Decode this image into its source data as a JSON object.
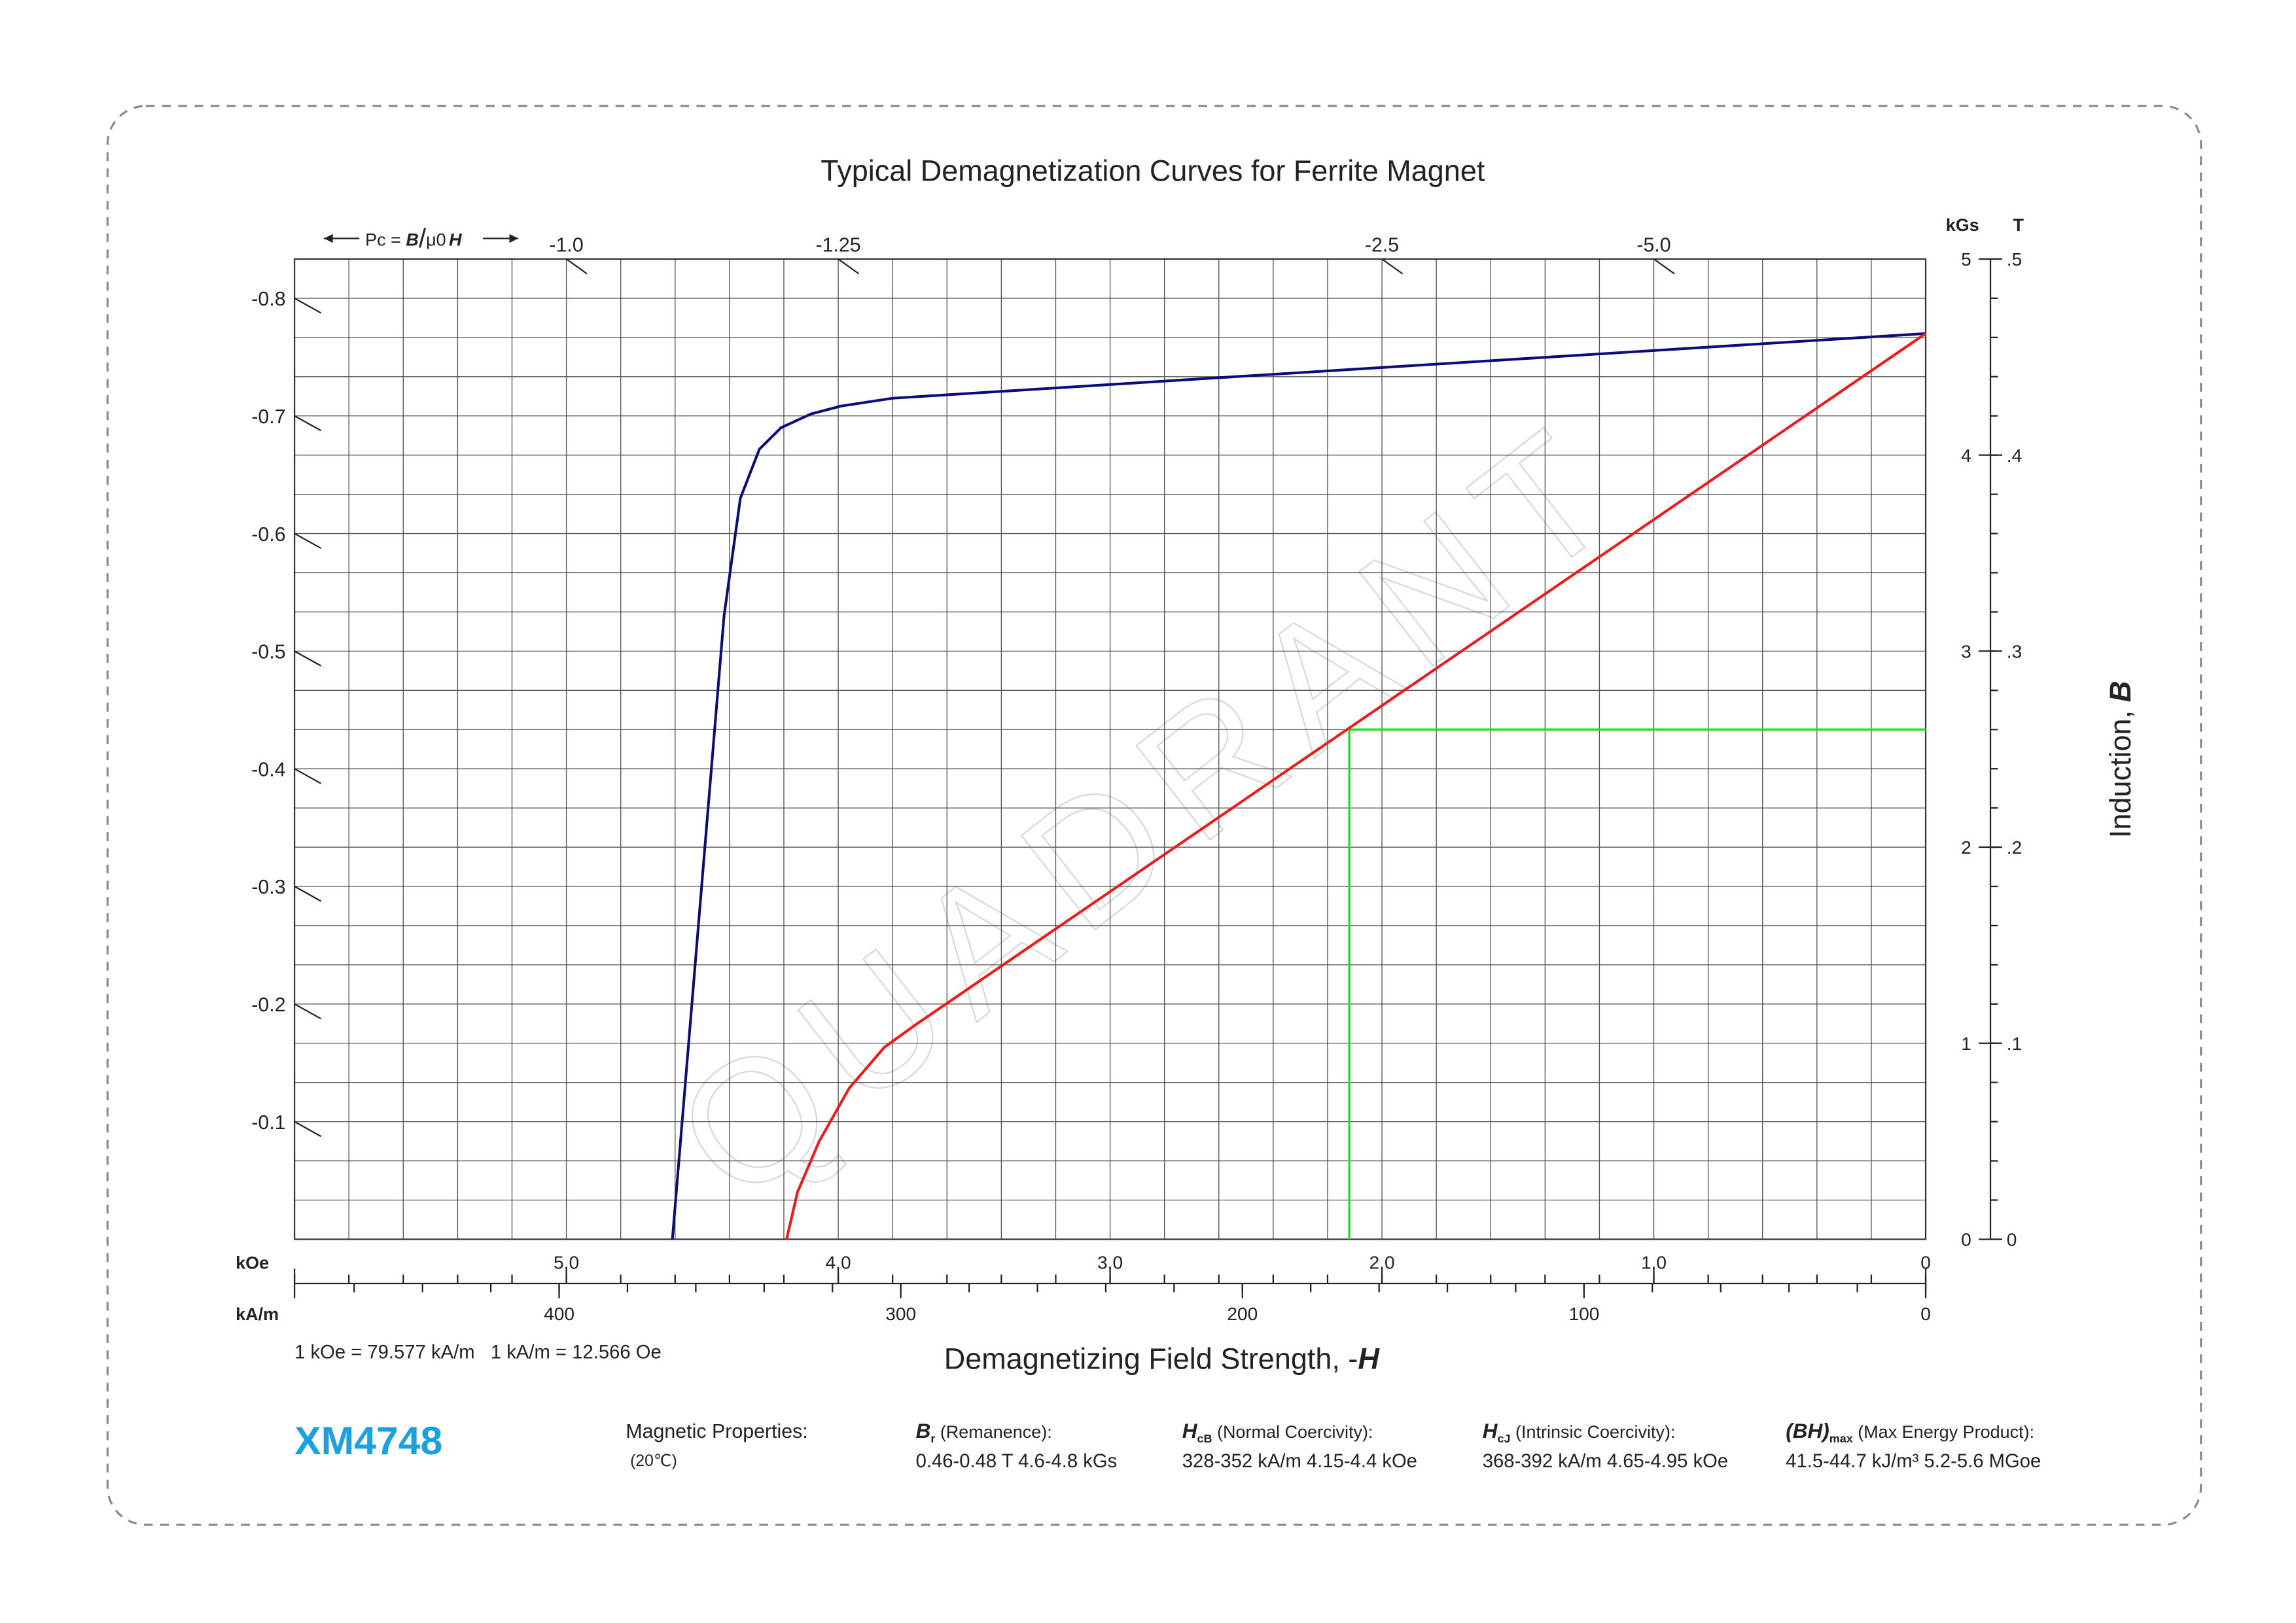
{
  "chart_data": {
    "type": "line",
    "title": "Typical Demagnetization Curves for Ferrite Magnet",
    "watermark": "QUADRANT",
    "pc_label": {
      "prefix": "Pc = ",
      "num": "B",
      "slash": "/",
      "den": "μ0",
      "var": "H"
    },
    "x_label": {
      "text": "Demagnetizing Field Strength, -",
      "var": "H"
    },
    "y_label": {
      "text": "Induction, ",
      "var": "B"
    },
    "x_unit": "kOe",
    "x2_unit": "kA/m",
    "y_unit": "kGs",
    "y2_unit": "T",
    "xlim": [
      6,
      0
    ],
    "xticks": [
      {
        "value": 5,
        "label": "5.0"
      },
      {
        "value": 4,
        "label": "4.0"
      },
      {
        "value": 3,
        "label": "3.0"
      },
      {
        "value": 2,
        "label": "2.0"
      },
      {
        "value": 1,
        "label": "1.0"
      },
      0
    ],
    "x2lim": [
      477.46,
      0
    ],
    "x2ticks": [
      400,
      300,
      200,
      100,
      0
    ],
    "x2_minor_step": 20,
    "ylim": [
      0,
      5
    ],
    "yticks": [
      0,
      1,
      2,
      3,
      4,
      5
    ],
    "y2lim": [
      0,
      0.5
    ],
    "y2ticks": [
      0,
      {
        "value": 0.1,
        "label": ".1"
      },
      {
        "value": 0.2,
        "label": ".2"
      },
      {
        "value": 0.3,
        "label": ".3"
      },
      {
        "value": 0.4,
        "label": ".4"
      },
      {
        "value": 0.5,
        "label": ".5"
      }
    ],
    "grid": {
      "x_step": 0.2,
      "y_step": 0.2
    },
    "pc_left": [
      -0.8,
      -0.7,
      -0.6,
      -0.5,
      -0.4,
      -0.3,
      -0.2,
      -0.1
    ],
    "pc_top": [
      {
        "value": -1,
        "label": "-1.0"
      },
      -1.25,
      -2.5,
      {
        "value": -5,
        "label": "-5.0"
      }
    ],
    "series": [
      {
        "color": "#0b0b7a",
        "x": [
          0,
          2.54,
          3.8,
          3.99,
          4.1,
          4.21,
          4.29,
          4.36,
          4.42,
          4.61
        ],
        "values": [
          4.62,
          4.4,
          4.29,
          4.25,
          4.21,
          4.14,
          4.03,
          3.78,
          3.18,
          0
        ]
      },
      {
        "color": "#f01818",
        "x": [
          0,
          3.72,
          3.83,
          3.96,
          4.07,
          4.15,
          4.19
        ],
        "values": [
          4.62,
          1.09,
          0.98,
          0.77,
          0.5,
          0.24,
          0
        ]
      }
    ],
    "markers": {
      "color": "#22e022",
      "x": 2.12,
      "y": 2.6
    },
    "conversion": "1 kOe = 79.577 kA/m   1 kA/m = 12.566 Oe",
    "grade": "XM4748",
    "properties": {
      "title": "Magnetic Properties:",
      "temperature": "(20℃)",
      "items": [
        {
          "symbol": "B",
          "sub": "r",
          "name": " (Remanence):",
          "value": "0.46-0.48 T   4.6-4.8 kGs"
        },
        {
          "symbol": "H",
          "sub": "cB",
          "name": " (Normal Coercivity):",
          "value": "328-352 kA/m   4.15-4.4 kOe"
        },
        {
          "symbol": "H",
          "sub": "cJ",
          "name": "  (Intrinsic Coercivity):",
          "value": "368-392 kA/m   4.65-4.95 kOe"
        },
        {
          "symbol": "(BH)",
          "sub": "max",
          "name": " (Max Energy Product):",
          "value": "41.5-44.7 kJ/m³   5.2-5.6 MGoe"
        }
      ]
    }
  }
}
